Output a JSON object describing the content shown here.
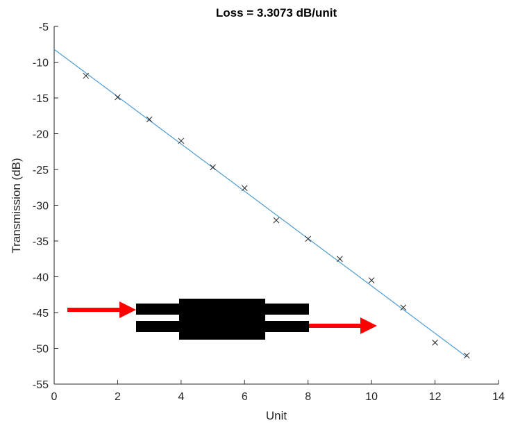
{
  "chart_data": {
    "type": "scatter",
    "title": "Loss = 3.3073 dB/unit",
    "xlabel": "Unit",
    "ylabel": "Transmission (dB)",
    "xlim": [
      0,
      14
    ],
    "ylim": [
      -55,
      -5
    ],
    "xticks": [
      0,
      2,
      4,
      6,
      8,
      10,
      12,
      14
    ],
    "yticks": [
      -55,
      -50,
      -45,
      -40,
      -35,
      -30,
      -25,
      -20,
      -15,
      -10,
      -5
    ],
    "grid": false,
    "legend": "none",
    "series": [
      {
        "marker": "x",
        "color": "#262626",
        "points": [
          {
            "x": 1,
            "y": -11.9
          },
          {
            "x": 2,
            "y": -14.9
          },
          {
            "x": 3,
            "y": -18.0
          },
          {
            "x": 4,
            "y": -21.0
          },
          {
            "x": 5,
            "y": -24.7
          },
          {
            "x": 6,
            "y": -27.6
          },
          {
            "x": 7,
            "y": -32.1
          },
          {
            "x": 8,
            "y": -34.7
          },
          {
            "x": 9,
            "y": -37.5
          },
          {
            "x": 10,
            "y": -40.5
          },
          {
            "x": 11,
            "y": -44.3
          },
          {
            "x": 12,
            "y": -49.2
          },
          {
            "x": 13,
            "y": -51.0
          }
        ]
      },
      {
        "type": "line",
        "color": "#4d9bd0",
        "points": [
          {
            "x": 0,
            "y": -8.2
          },
          {
            "x": 13,
            "y": -51.2
          }
        ]
      }
    ]
  },
  "inset_diagram": {
    "arrow_color": "#ff0000",
    "device_color": "#000000"
  }
}
